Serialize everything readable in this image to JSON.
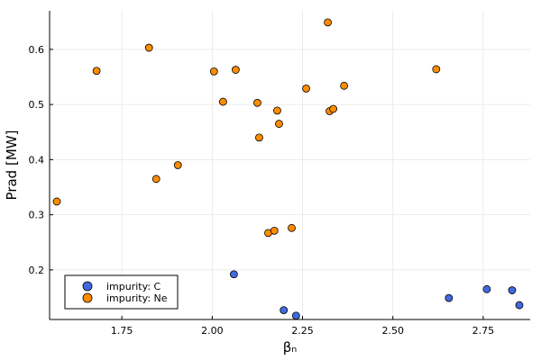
{
  "chart_data": {
    "type": "scatter",
    "title": "",
    "xlabel": "βₙ",
    "ylabel": "Prad [MW]",
    "xlim": [
      1.55,
      2.88
    ],
    "ylim": [
      0.11,
      0.67
    ],
    "xticks": [
      1.75,
      2.0,
      2.25,
      2.5,
      2.75
    ],
    "xtick_labels": [
      "1.75",
      "2.00",
      "2.25",
      "2.50",
      "2.75"
    ],
    "yticks": [
      0.2,
      0.3,
      0.4,
      0.5,
      0.6
    ],
    "ytick_labels": [
      "0.2",
      "0.3",
      "0.4",
      "0.5",
      "0.6"
    ],
    "grid": true,
    "legend_position": "bottom-left",
    "series": [
      {
        "name": "impurity: C",
        "color": "#4169e1",
        "points": [
          {
            "x": 2.06,
            "y": 0.192
          },
          {
            "x": 2.198,
            "y": 0.127
          },
          {
            "x": 2.232,
            "y": 0.117
          },
          {
            "x": 2.655,
            "y": 0.149
          },
          {
            "x": 2.76,
            "y": 0.165
          },
          {
            "x": 2.83,
            "y": 0.163
          },
          {
            "x": 2.85,
            "y": 0.136
          }
        ]
      },
      {
        "name": "impurity: Ne",
        "color": "#ff8c00",
        "points": [
          {
            "x": 1.57,
            "y": 0.324
          },
          {
            "x": 1.68,
            "y": 0.561
          },
          {
            "x": 1.825,
            "y": 0.603
          },
          {
            "x": 1.845,
            "y": 0.365
          },
          {
            "x": 1.905,
            "y": 0.39
          },
          {
            "x": 2.005,
            "y": 0.56
          },
          {
            "x": 2.03,
            "y": 0.505
          },
          {
            "x": 2.065,
            "y": 0.563
          },
          {
            "x": 2.125,
            "y": 0.503
          },
          {
            "x": 2.13,
            "y": 0.44
          },
          {
            "x": 2.155,
            "y": 0.267
          },
          {
            "x": 2.172,
            "y": 0.271
          },
          {
            "x": 2.18,
            "y": 0.489
          },
          {
            "x": 2.185,
            "y": 0.465
          },
          {
            "x": 2.22,
            "y": 0.276
          },
          {
            "x": 2.26,
            "y": 0.529
          },
          {
            "x": 2.32,
            "y": 0.649
          },
          {
            "x": 2.325,
            "y": 0.488
          },
          {
            "x": 2.335,
            "y": 0.492
          },
          {
            "x": 2.365,
            "y": 0.534
          },
          {
            "x": 2.62,
            "y": 0.564
          }
        ]
      }
    ]
  }
}
